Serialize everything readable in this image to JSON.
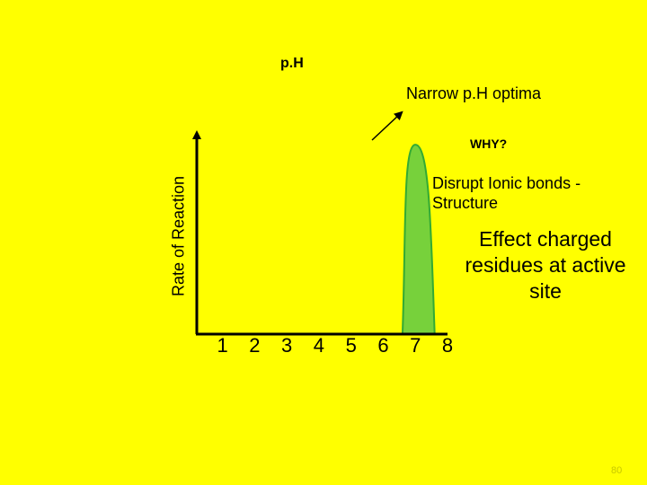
{
  "slide": {
    "title": "p.H",
    "annotation_narrow": "Narrow p.H optima",
    "question": "WHY?",
    "reason_1": "Disrupt Ionic bonds - Structure",
    "reason_2": "Effect charged residues at active site",
    "page_number": "80"
  },
  "chart_data": {
    "type": "area",
    "title": "p.H",
    "xlabel": "",
    "ylabel": "Rate of Reaction",
    "x_ticks": [
      "1",
      "2",
      "3",
      "4",
      "5",
      "6",
      "7",
      "8"
    ],
    "xlim": [
      0.2,
      8
    ],
    "curve": {
      "shape": "narrow peak",
      "x_start": 6.6,
      "x_peak": 7.0,
      "x_end": 7.6,
      "peak_relative_height": 0.95
    },
    "colors": {
      "background": "#FFFF00",
      "fill": "#77D13B",
      "outline": "#33AA33",
      "axes": "#000000"
    }
  }
}
